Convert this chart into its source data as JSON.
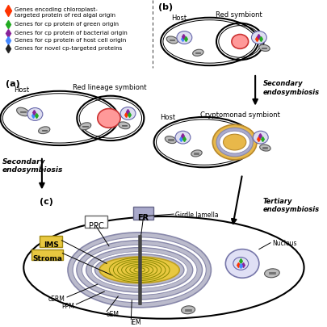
{
  "legend_items": [
    {
      "color": "#FF3300",
      "text": "Genes encoding chloroplast-\ntargeted protein of red algal origin"
    },
    {
      "color": "#22AA22",
      "text": "Genes for cp protein of green origin"
    },
    {
      "color": "#882299",
      "text": "Genes for cp protein of bacterial origin"
    },
    {
      "color": "#4488FF",
      "text": "Genes for cp protein of host cell origin"
    },
    {
      "color": "#222222",
      "text": "Genes for novel cp-targeted proteins"
    }
  ],
  "panel_a_label": "(a)",
  "panel_b_label": "(b)",
  "panel_c_label": "(c)",
  "host_label": "Host",
  "red_lineage_label": "Red lineage symbiont",
  "secondary_endo_label": "Secondary\nendosymbiosis",
  "tertiary_endo_label": "Tertiary\nendosymbiosis",
  "red_symbiont_label": "Red symbiont",
  "cryptomonad_label": "Cryptomonad symbiont",
  "er_label": "ER",
  "ppc_label": "PPC",
  "ims_label": "IMS",
  "stroma_label": "Stroma",
  "girdle_label": "Girdle lamella",
  "nucleus_label": "Nucleus",
  "cerm_label": "cERM",
  "ppm_label": "PPM",
  "oem_label": "oEM",
  "iem_label": "iEM",
  "bg_color": "#FFFFFF"
}
